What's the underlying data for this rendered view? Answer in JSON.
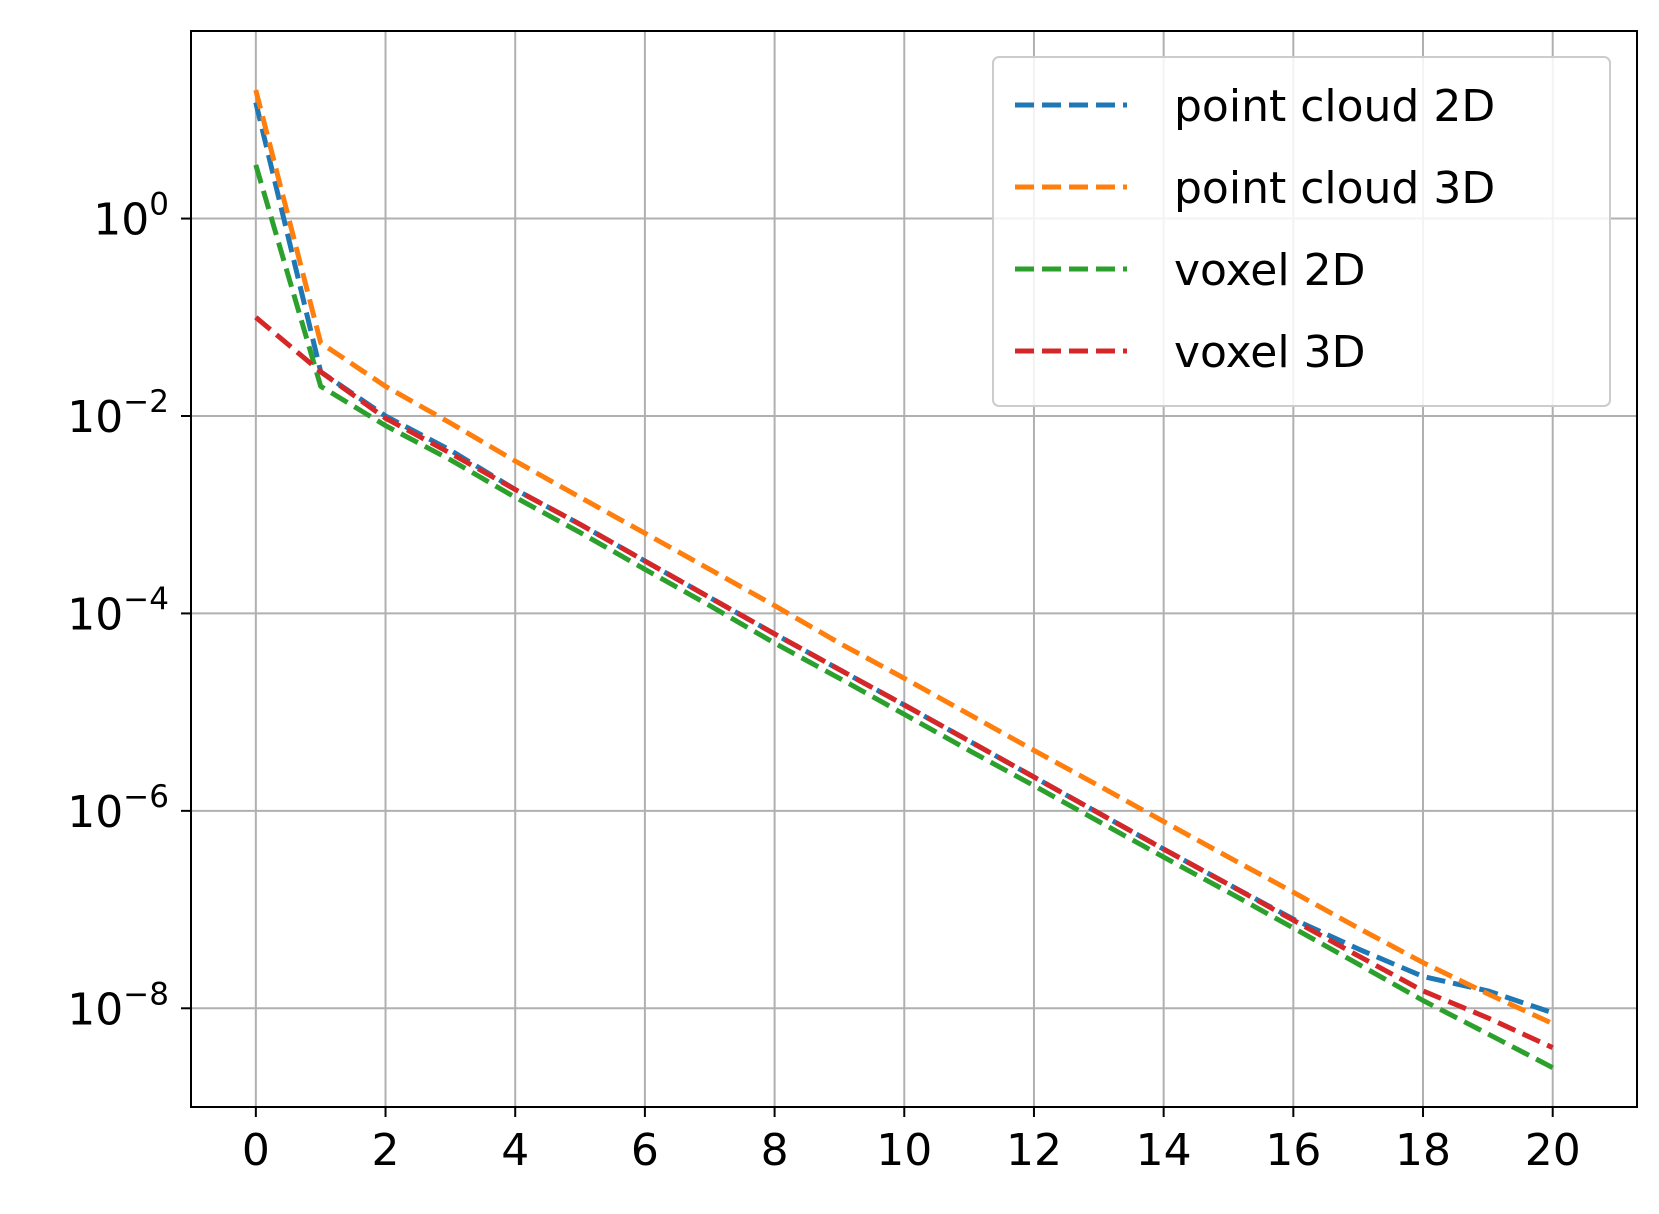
{
  "chart_data": {
    "type": "line",
    "title": "",
    "xlabel": "",
    "ylabel": "",
    "x": [
      0,
      1,
      2,
      3,
      4,
      5,
      6,
      7,
      8,
      9,
      10,
      11,
      12,
      13,
      14,
      15,
      16,
      17,
      18,
      19,
      20
    ],
    "xlim": [
      -1,
      21.3
    ],
    "ylim_log10": [
      -9.0,
      1.9
    ],
    "y_scale": "log",
    "grid": true,
    "legend_position": "top-right",
    "xticks": [
      0,
      2,
      4,
      6,
      8,
      10,
      12,
      14,
      16,
      18,
      20
    ],
    "xtick_labels": [
      "0",
      "2",
      "4",
      "6",
      "8",
      "10",
      "12",
      "14",
      "16",
      "18",
      "20"
    ],
    "yticks": [
      {
        "value": 1,
        "base": "10",
        "exp": "0"
      },
      {
        "value": 0.01,
        "base": "10",
        "exp": "−2"
      },
      {
        "value": 0.0001,
        "base": "10",
        "exp": "−4"
      },
      {
        "value": 1e-06,
        "base": "10",
        "exp": "−6"
      },
      {
        "value": 1e-08,
        "base": "10",
        "exp": "−8"
      }
    ],
    "series": [
      {
        "name": "point cloud 2D",
        "color": "#1f77b4",
        "values": [
          15,
          0.028,
          0.01,
          0.0045,
          0.0018,
          0.0008,
          0.00034,
          0.000145,
          6.2e-05,
          2.7e-05,
          1.18e-05,
          5.1e-06,
          2.2e-06,
          9.5e-07,
          4.1e-07,
          1.8e-07,
          8e-08,
          4e-08,
          2.1e-08,
          1.5e-08,
          9e-09
        ]
      },
      {
        "name": "point cloud 3D",
        "color": "#ff7f0e",
        "values": [
          20,
          0.055,
          0.02,
          0.0085,
          0.0035,
          0.0015,
          0.00065,
          0.00028,
          0.00012,
          5e-05,
          2.2e-05,
          9.5e-06,
          4.1e-06,
          1.8e-06,
          7.8e-07,
          3.4e-07,
          1.5e-07,
          6.5e-08,
          2.9e-08,
          1.4e-08,
          7e-09
        ]
      },
      {
        "name": "voxel 2D",
        "color": "#2ca02c",
        "values": [
          3.5,
          0.02,
          0.008,
          0.0036,
          0.0015,
          0.00066,
          0.00028,
          0.00012,
          5e-05,
          2.2e-05,
          9.5e-06,
          4.1e-06,
          1.8e-06,
          7.8e-07,
          3.4e-07,
          1.5e-07,
          6.5e-08,
          2.8e-08,
          1.2e-08,
          5.5e-09,
          2.5e-09
        ]
      },
      {
        "name": "voxel 3D",
        "color": "#d62728",
        "values": [
          0.1,
          0.028,
          0.0095,
          0.0042,
          0.0018,
          0.0008,
          0.00034,
          0.000145,
          6.2e-05,
          2.7e-05,
          1.18e-05,
          5.1e-06,
          2.2e-06,
          9.5e-07,
          4.1e-07,
          1.8e-07,
          7.8e-08,
          3.4e-08,
          1.5e-08,
          8e-09,
          4e-09
        ]
      }
    ]
  }
}
